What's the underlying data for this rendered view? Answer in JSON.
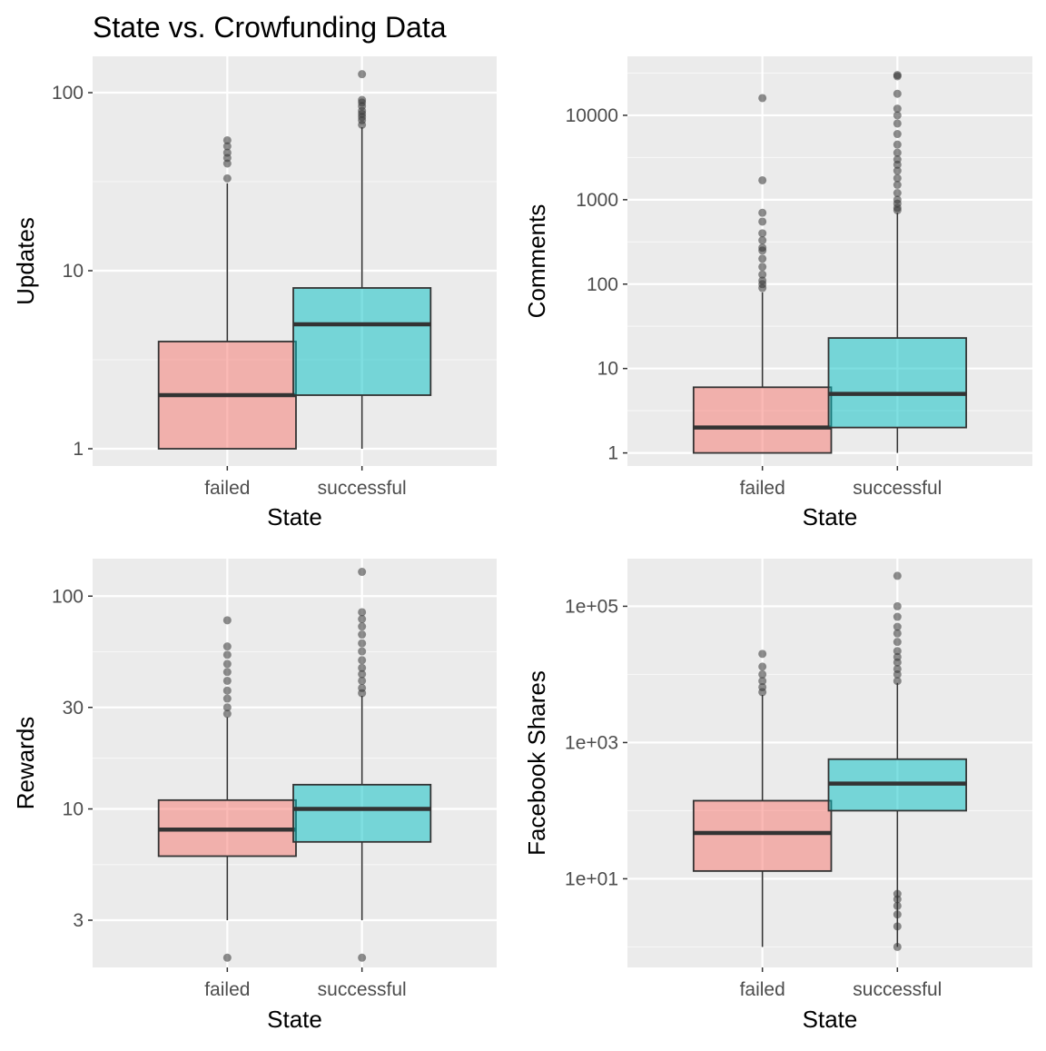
{
  "figure": {
    "title": "State vs. Crowfunding Data"
  },
  "style": {
    "panel_bg": "#EBEBEB",
    "grid_major": "#FFFFFF",
    "failed_fill": "#F8766D",
    "successful_fill": "#00BFC4",
    "box_alpha": 0.5,
    "outlier_color": "#333333"
  },
  "chart_data": [
    {
      "type": "box",
      "ylabel": "Updates",
      "xlabel": "State",
      "scale": "log10",
      "ylim": [
        0.8,
        160
      ],
      "yticks": [
        1,
        10,
        100
      ],
      "ytick_labels": [
        "1",
        "10",
        "100"
      ],
      "categories": [
        "failed",
        "successful"
      ],
      "boxes": [
        {
          "category": "failed",
          "whisker_low": 1,
          "q1": 1,
          "median": 2,
          "q3": 4,
          "whisker_high": 31,
          "outliers": [
            33,
            40,
            43,
            46,
            50,
            54
          ]
        },
        {
          "category": "successful",
          "whisker_low": 1,
          "q1": 2,
          "median": 5,
          "q3": 8,
          "whisker_high": 64,
          "outliers": [
            66,
            70,
            73,
            76,
            79,
            84,
            88,
            91,
            127
          ]
        }
      ]
    },
    {
      "type": "box",
      "ylabel": "Comments",
      "xlabel": "State",
      "scale": "log10",
      "ylim": [
        0.7,
        50000
      ],
      "yticks": [
        1,
        10,
        100,
        1000,
        10000
      ],
      "ytick_labels": [
        "1",
        "10",
        "100",
        "1000",
        "10000"
      ],
      "categories": [
        "failed",
        "successful"
      ],
      "boxes": [
        {
          "category": "failed",
          "whisker_low": 1,
          "q1": 1,
          "median": 2,
          "q3": 6,
          "whisker_high": 80,
          "outliers": [
            90,
            100,
            110,
            130,
            160,
            200,
            250,
            270,
            330,
            400,
            550,
            700,
            1700,
            16000
          ]
        },
        {
          "category": "successful",
          "whisker_low": 1,
          "q1": 2,
          "median": 5,
          "q3": 23,
          "whisker_high": 700,
          "outliers": [
            750,
            800,
            900,
            1000,
            1200,
            1500,
            1800,
            2200,
            2600,
            3000,
            3600,
            4500,
            6000,
            8000,
            10000,
            12000,
            18000,
            29000,
            30000
          ]
        }
      ]
    },
    {
      "type": "box",
      "ylabel": "Rewards",
      "xlabel": "State",
      "scale": "log10",
      "ylim": [
        1.8,
        150
      ],
      "yticks": [
        3,
        10,
        30,
        100
      ],
      "ytick_labels": [
        "3",
        "10",
        "30",
        "100"
      ],
      "categories": [
        "failed",
        "successful"
      ],
      "boxes": [
        {
          "category": "failed",
          "whisker_low": 3,
          "q1": 6,
          "median": 8,
          "q3": 11,
          "whisker_high": 27,
          "outliers": [
            2,
            28,
            30,
            33,
            36,
            40,
            44,
            48,
            53,
            58,
            77
          ]
        },
        {
          "category": "successful",
          "whisker_low": 3,
          "q1": 7,
          "median": 10,
          "q3": 13,
          "whisker_high": 34,
          "outliers": [
            2,
            35,
            37,
            40,
            43,
            46,
            50,
            55,
            60,
            66,
            72,
            78,
            84,
            130
          ]
        }
      ]
    },
    {
      "type": "box",
      "ylabel": "Facebook Shares",
      "xlabel": "State",
      "scale": "log10",
      "ylim": [
        0.5,
        500000
      ],
      "yticks": [
        10,
        1000,
        100000
      ],
      "ytick_labels": [
        "1e+01",
        "1e+03",
        "1e+05"
      ],
      "categories": [
        "failed",
        "successful"
      ],
      "boxes": [
        {
          "category": "failed",
          "whisker_low": 1,
          "q1": 13,
          "median": 47,
          "q3": 140,
          "whisker_high": 5000,
          "outliers": [
            5500,
            6500,
            8000,
            10000,
            13000,
            20000
          ]
        },
        {
          "category": "successful",
          "whisker_low": 1,
          "q1": 100,
          "median": 250,
          "q3": 570,
          "whisker_high": 7500,
          "outliers": [
            1,
            2,
            3,
            4,
            5,
            6,
            8000,
            10000,
            12000,
            15000,
            18000,
            22000,
            30000,
            40000,
            50000,
            70000,
            100000,
            280000
          ]
        }
      ]
    }
  ]
}
